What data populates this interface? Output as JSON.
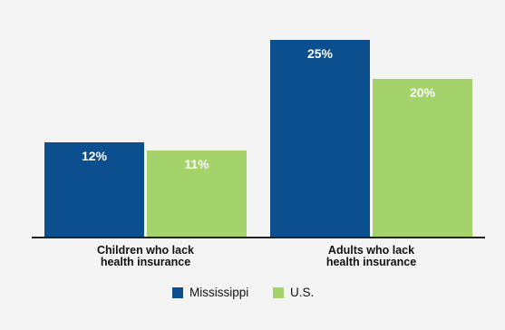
{
  "chart_data": {
    "type": "bar",
    "categories": [
      "Children who lack\nhealth insurance",
      "Adults who lack\nhealth insurance"
    ],
    "series": [
      {
        "name": "Mississippi",
        "color": "#0b4f8f",
        "values": [
          12,
          25
        ],
        "value_labels": [
          "12%",
          "25%"
        ]
      },
      {
        "name": "U.S.",
        "color": "#a4d36b",
        "values": [
          11,
          20
        ],
        "value_labels": [
          "11%",
          "20%"
        ]
      }
    ]
  }
}
